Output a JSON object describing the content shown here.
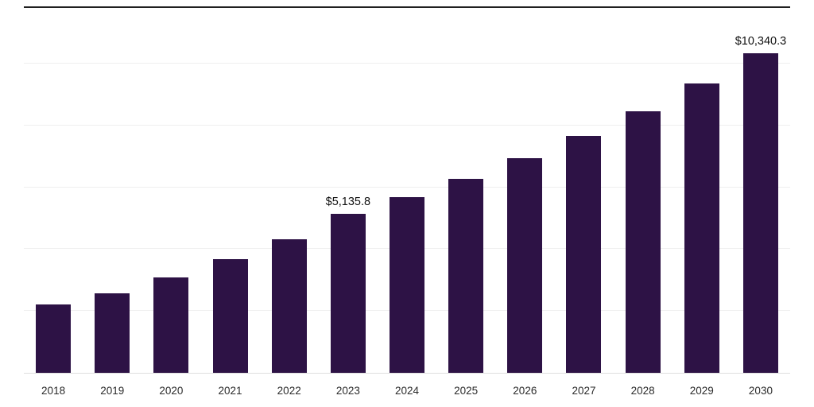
{
  "chart_data": {
    "type": "bar",
    "title": "",
    "xlabel": "",
    "ylabel": "",
    "categories": [
      "2018",
      "2019",
      "2020",
      "2021",
      "2022",
      "2023",
      "2024",
      "2025",
      "2026",
      "2027",
      "2028",
      "2029",
      "2030"
    ],
    "values": [
      2200,
      2570,
      3080,
      3670,
      4330,
      5135.8,
      5670,
      6280,
      6940,
      7650,
      8470,
      9360,
      10340.3
    ],
    "annotations": [
      {
        "category": "2023",
        "text": "$5,135.8"
      },
      {
        "category": "2030",
        "text": "$10,340.3"
      }
    ],
    "ylim": [
      0,
      11800
    ],
    "gridlines": [
      2000,
      4000,
      6000,
      8000,
      10000
    ],
    "grid": "on",
    "legend": "none",
    "bar_color": "#2d1245",
    "top_border_color": "#202020",
    "gridline_color": "#efefef",
    "tick_label_color": "#2b2b2b",
    "value_label_color": "#111111"
  }
}
